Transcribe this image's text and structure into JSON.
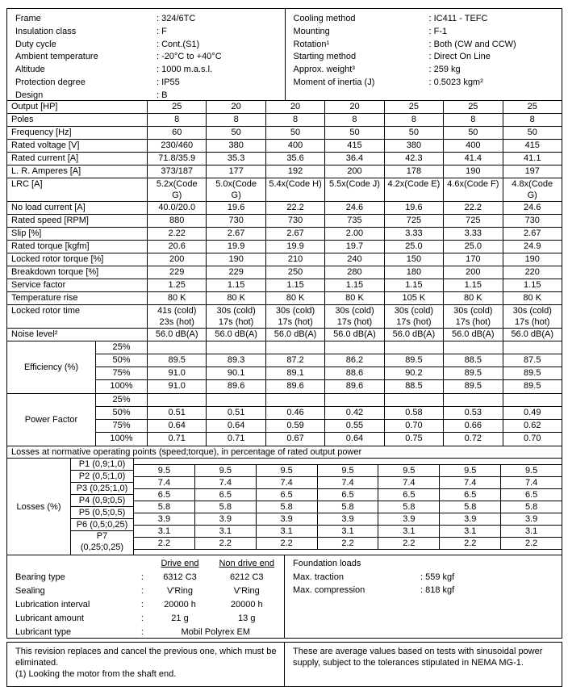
{
  "header": {
    "left": [
      {
        "label": "Frame",
        "value": ": 324/6TC"
      },
      {
        "label": "Insulation class",
        "value": ": F"
      },
      {
        "label": "Duty cycle",
        "value": ": Cont.(S1)"
      },
      {
        "label": "Ambient temperature",
        "value": ": -20°C to +40°C"
      },
      {
        "label": "Altitude",
        "value": ": 1000 m.a.s.l."
      },
      {
        "label": "Protection degree",
        "value": ": IP55"
      },
      {
        "label": "Design",
        "value": ": B"
      }
    ],
    "right": [
      {
        "label": "Cooling method",
        "value": ": IC411 - TEFC"
      },
      {
        "label": "Mounting",
        "value": ": F-1"
      },
      {
        "label": "Rotation¹",
        "value": ": Both (CW and CCW)"
      },
      {
        "label": "Starting method",
        "value": ": Direct On Line"
      },
      {
        "label": "Approx. weight³",
        "value": ": 259 kg"
      },
      {
        "label": "Moment of inertia (J)",
        "value": ": 0.5023 kgm²"
      }
    ]
  },
  "spec_table": {
    "rows": [
      {
        "label": "Output [HP]",
        "values": [
          "25",
          "20",
          "20",
          "20",
          "25",
          "25",
          "25"
        ]
      },
      {
        "label": "Poles",
        "values": [
          "8",
          "8",
          "8",
          "8",
          "8",
          "8",
          "8"
        ]
      },
      {
        "label": "Frequency [Hz]",
        "values": [
          "60",
          "50",
          "50",
          "50",
          "50",
          "50",
          "50"
        ]
      },
      {
        "label": "Rated voltage [V]",
        "values": [
          "230/460",
          "380",
          "400",
          "415",
          "380",
          "400",
          "415"
        ]
      },
      {
        "label": "Rated current [A]",
        "values": [
          "71.8/35.9",
          "35.3",
          "35.6",
          "36.4",
          "42.3",
          "41.4",
          "41.1"
        ]
      },
      {
        "label": "L. R. Amperes [A]",
        "values": [
          "373/187",
          "177",
          "192",
          "200",
          "178",
          "190",
          "197"
        ]
      },
      {
        "label": "LRC [A]",
        "values": [
          "5.2x(Code\nG)",
          "5.0x(Code\nG)",
          "5.4x(Code H)",
          "5.5x(Code J)",
          "4.2x(Code E)",
          "4.6x(Code F)",
          "4.8x(Code\nG)"
        ]
      },
      {
        "label": "No load current [A]",
        "values": [
          "40.0/20.0",
          "19.6",
          "22.2",
          "24.6",
          "19.6",
          "22.2",
          "24.6"
        ]
      },
      {
        "label": "Rated speed [RPM]",
        "values": [
          "880",
          "730",
          "730",
          "735",
          "725",
          "725",
          "730"
        ]
      },
      {
        "label": "Slip [%]",
        "values": [
          "2.22",
          "2.67",
          "2.67",
          "2.00",
          "3.33",
          "3.33",
          "2.67"
        ]
      },
      {
        "label": "Rated torque [kgfm]",
        "values": [
          "20.6",
          "19.9",
          "19.9",
          "19.7",
          "25.0",
          "25.0",
          "24.9"
        ]
      },
      {
        "label": "Locked rotor torque [%]",
        "values": [
          "200",
          "190",
          "210",
          "240",
          "150",
          "170",
          "190"
        ]
      },
      {
        "label": "Breakdown torque [%]",
        "values": [
          "229",
          "229",
          "250",
          "280",
          "180",
          "200",
          "220"
        ]
      },
      {
        "label": "Service factor",
        "values": [
          "1.25",
          "1.15",
          "1.15",
          "1.15",
          "1.15",
          "1.15",
          "1.15"
        ]
      },
      {
        "label": "Temperature rise",
        "values": [
          "80 K",
          "80 K",
          "80 K",
          "80 K",
          "105 K",
          "80 K",
          "80 K"
        ]
      },
      {
        "label": "Locked rotor time",
        "values": [
          "41s (cold)\n23s (hot)",
          "30s (cold)\n17s (hot)",
          "30s (cold)\n17s (hot)",
          "30s (cold)\n17s (hot)",
          "30s (cold)\n17s (hot)",
          "30s (cold)\n17s (hot)",
          "30s (cold)\n17s (hot)"
        ]
      },
      {
        "label": "Noise level²",
        "values": [
          "56.0 dB(A)",
          "56.0 dB(A)",
          "56.0 dB(A)",
          "56.0 dB(A)",
          "56.0 dB(A)",
          "56.0 dB(A)",
          "56.0 dB(A)"
        ]
      }
    ]
  },
  "efficiency": {
    "label": "Efficiency (%)",
    "rows": [
      {
        "pct": "25%",
        "values": [
          "",
          "",
          "",
          "",
          "",
          "",
          ""
        ]
      },
      {
        "pct": "50%",
        "values": [
          "89.5",
          "89.3",
          "87.2",
          "86.2",
          "89.5",
          "88.5",
          "87.5"
        ]
      },
      {
        "pct": "75%",
        "values": [
          "91.0",
          "90.1",
          "89.1",
          "88.6",
          "90.2",
          "89.5",
          "89.5"
        ]
      },
      {
        "pct": "100%",
        "values": [
          "91.0",
          "89.6",
          "89.6",
          "89.6",
          "88.5",
          "89.5",
          "89.5"
        ]
      }
    ]
  },
  "power_factor": {
    "label": "Power Factor",
    "rows": [
      {
        "pct": "25%",
        "values": [
          "",
          "",
          "",
          "",
          "",
          "",
          ""
        ]
      },
      {
        "pct": "50%",
        "values": [
          "0.51",
          "0.51",
          "0.46",
          "0.42",
          "0.58",
          "0.53",
          "0.49"
        ]
      },
      {
        "pct": "75%",
        "values": [
          "0.64",
          "0.64",
          "0.59",
          "0.55",
          "0.70",
          "0.66",
          "0.62"
        ]
      },
      {
        "pct": "100%",
        "values": [
          "0.71",
          "0.71",
          "0.67",
          "0.64",
          "0.75",
          "0.72",
          "0.70"
        ]
      }
    ]
  },
  "losses": {
    "title": "Losses at normative operating points (speed;torque), in percentage of rated output power",
    "label": "Losses (%)",
    "points": [
      {
        "name": "P1 (0,9;1,0)",
        "values": [
          "9.5",
          "9.5",
          "9.5",
          "9.5",
          "9.5",
          "9.5",
          "9.5"
        ]
      },
      {
        "name": "P2 (0,5;1,0)",
        "values": [
          "7.4",
          "7.4",
          "7.4",
          "7.4",
          "7.4",
          "7.4",
          "7.4"
        ]
      },
      {
        "name": "P3 (0,25;1,0)",
        "values": [
          "6.5",
          "6.5",
          "6.5",
          "6.5",
          "6.5",
          "6.5",
          "6.5"
        ]
      },
      {
        "name": "P4 (0,9;0,5)",
        "values": [
          "5.8",
          "5.8",
          "5.8",
          "5.8",
          "5.8",
          "5.8",
          "5.8"
        ]
      },
      {
        "name": "P5 (0,5;0,5)",
        "values": [
          "3.9",
          "3.9",
          "3.9",
          "3.9",
          "3.9",
          "3.9",
          "3.9"
        ]
      },
      {
        "name": "P6 (0,5;0,25)",
        "values": [
          "3.1",
          "3.1",
          "3.1",
          "3.1",
          "3.1",
          "3.1",
          "3.1"
        ]
      },
      {
        "name": "P7\n(0,25;0,25)",
        "values": [
          "2.2",
          "2.2",
          "2.2",
          "2.2",
          "2.2",
          "2.2",
          "2.2"
        ]
      }
    ]
  },
  "bearings": {
    "colon": ":",
    "col_headers": [
      "Drive end",
      "Non drive end"
    ],
    "rows": [
      {
        "label": "Bearing type",
        "de": "6312 C3",
        "nde": "6212 C3"
      },
      {
        "label": "Sealing",
        "de": "V'Ring",
        "nde": "V'Ring"
      },
      {
        "label": "Lubrication interval",
        "de": "20000 h",
        "nde": "20000 h"
      },
      {
        "label": "Lubricant amount",
        "de": "21 g",
        "nde": "13 g"
      }
    ],
    "lubricant_type": {
      "label": "Lubricant type",
      "value": "Mobil Polyrex EM"
    }
  },
  "foundation": {
    "title": "Foundation loads",
    "rows": [
      {
        "label": "Max. traction",
        "value": ": 559 kgf"
      },
      {
        "label": "Max. compression",
        "value": ": 818 kgf"
      }
    ]
  },
  "notes": {
    "left1": "This revision replaces and cancel the previous one, which must be eliminated.",
    "left2": "(1) Looking the motor from the shaft end.",
    "right": "These are average values based on tests with sinusoidal power supply, subject to the tolerances stipulated in NEMA MG-1."
  }
}
